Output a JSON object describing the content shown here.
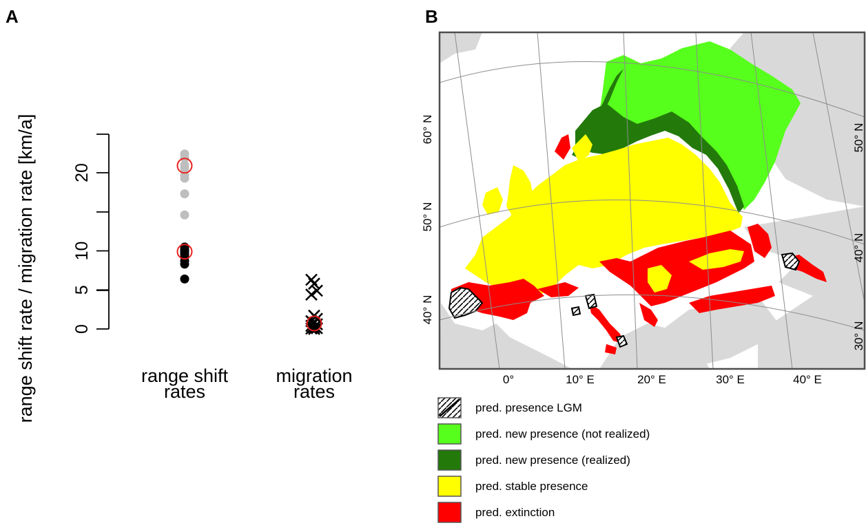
{
  "panels": {
    "a_label": "A",
    "b_label": "B"
  },
  "chart_data": [
    {
      "type": "scatter",
      "panel": "A",
      "title": "",
      "ylabel": "range shift rate / migration rate [km/a]",
      "xlabel": "",
      "ylim": [
        0,
        25
      ],
      "yticks": [
        0,
        5,
        10,
        20
      ],
      "categories": [
        "range shift rates",
        "migration rates"
      ],
      "category_lines": [
        [
          "range shift",
          "rates"
        ],
        [
          "migration",
          "rates"
        ]
      ],
      "series": [
        {
          "category": "range shift rates",
          "marker": "filled-circle",
          "color": "#bebebe",
          "values": [
            22.4,
            21.9,
            21.0,
            20.6,
            19.7,
            19.3,
            17.3,
            14.6
          ]
        },
        {
          "category": "range shift rates",
          "marker": "filled-circle",
          "color": "#000000",
          "values": [
            10.5,
            10.2,
            10.0,
            9.8,
            9.5,
            9.2,
            8.7,
            8.3,
            6.4
          ]
        },
        {
          "category": "range shift rates",
          "marker": "open-circle",
          "color": "#e8231f",
          "values": [
            20.9,
            9.9
          ]
        },
        {
          "category": "migration rates",
          "marker": "cross",
          "color": "#000000",
          "values": [
            6.3,
            5.8,
            4.9,
            4.4,
            1.7,
            1.3,
            1.0,
            0.8,
            0.6,
            0.4,
            0.2,
            0.1,
            0.05,
            0.0
          ]
        },
        {
          "category": "migration rates",
          "marker": "open-circle",
          "color": "#e8231f",
          "values": [
            0.7
          ]
        }
      ]
    },
    {
      "type": "map",
      "panel": "B",
      "x_ticks": [
        "0°",
        "10° E",
        "20° E",
        "30° E",
        "40° E"
      ],
      "y_ticks_left": [
        "60° N",
        "50° N",
        "40° N"
      ],
      "y_ticks_right": [
        "50° N",
        "40° N",
        "30° N"
      ],
      "legend": [
        {
          "label": "pred. presence LGM",
          "fill": "hatch",
          "color": "#000000"
        },
        {
          "label": "pred. new presence (not realized)",
          "fill": "solid",
          "color": "#57ff1c"
        },
        {
          "label": "pred. new presence (realized)",
          "fill": "solid",
          "color": "#237a0a"
        },
        {
          "label": "pred. stable presence",
          "fill": "solid",
          "color": "#ffff00"
        },
        {
          "label": "pred. extinction",
          "fill": "solid",
          "color": "#ff0000"
        }
      ],
      "colors": {
        "land": "#d9d9d9",
        "sea": "#ffffff",
        "grid": "#8c8c8c"
      }
    }
  ]
}
